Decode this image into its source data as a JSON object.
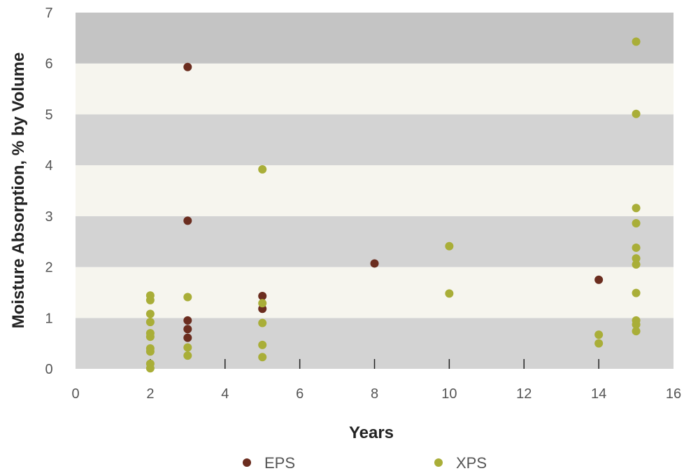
{
  "chart_data": {
    "type": "scatter",
    "title": "",
    "xlabel": "Years",
    "ylabel": "Moisture Absorption,  % by Volume",
    "xlim": [
      0,
      16
    ],
    "ylim": [
      0,
      7
    ],
    "xticks": [
      "0",
      "2",
      "4",
      "6",
      "8",
      "10",
      "12",
      "14",
      "16"
    ],
    "yticks": [
      "0",
      "1",
      "2",
      "3",
      "4",
      "5",
      "6",
      "7"
    ],
    "grid": "alternating horizontal bands",
    "legend_position": "bottom",
    "band_colors": [
      "#d3d3d3",
      "#f6f5ee",
      "#c4c4c4"
    ],
    "series": [
      {
        "name": "EPS",
        "color": "#6b2d1f",
        "points": [
          [
            3,
            5.93
          ],
          [
            3,
            2.91
          ],
          [
            3,
            0.95
          ],
          [
            3,
            0.78
          ],
          [
            3,
            0.61
          ],
          [
            5,
            1.43
          ],
          [
            5,
            1.18
          ],
          [
            8,
            2.07
          ],
          [
            14,
            1.75
          ]
        ]
      },
      {
        "name": "XPS",
        "color": "#a9ae38",
        "points": [
          [
            2,
            1.44
          ],
          [
            2,
            1.35
          ],
          [
            2,
            1.08
          ],
          [
            2,
            0.92
          ],
          [
            2,
            0.7
          ],
          [
            2,
            0.63
          ],
          [
            2,
            0.4
          ],
          [
            2,
            0.34
          ],
          [
            2,
            0.1
          ],
          [
            2,
            0.01
          ],
          [
            3,
            1.41
          ],
          [
            3,
            0.42
          ],
          [
            3,
            0.26
          ],
          [
            5,
            3.92
          ],
          [
            5,
            1.29
          ],
          [
            5,
            0.9
          ],
          [
            5,
            0.47
          ],
          [
            5,
            0.23
          ],
          [
            10,
            2.41
          ],
          [
            10,
            1.48
          ],
          [
            14,
            0.67
          ],
          [
            14,
            0.5
          ],
          [
            15,
            6.43
          ],
          [
            15,
            5.01
          ],
          [
            15,
            3.16
          ],
          [
            15,
            2.86
          ],
          [
            15,
            2.38
          ],
          [
            15,
            2.17
          ],
          [
            15,
            2.05
          ],
          [
            15,
            1.49
          ],
          [
            15,
            0.95
          ],
          [
            15,
            0.87
          ],
          [
            15,
            0.74
          ]
        ]
      }
    ]
  }
}
